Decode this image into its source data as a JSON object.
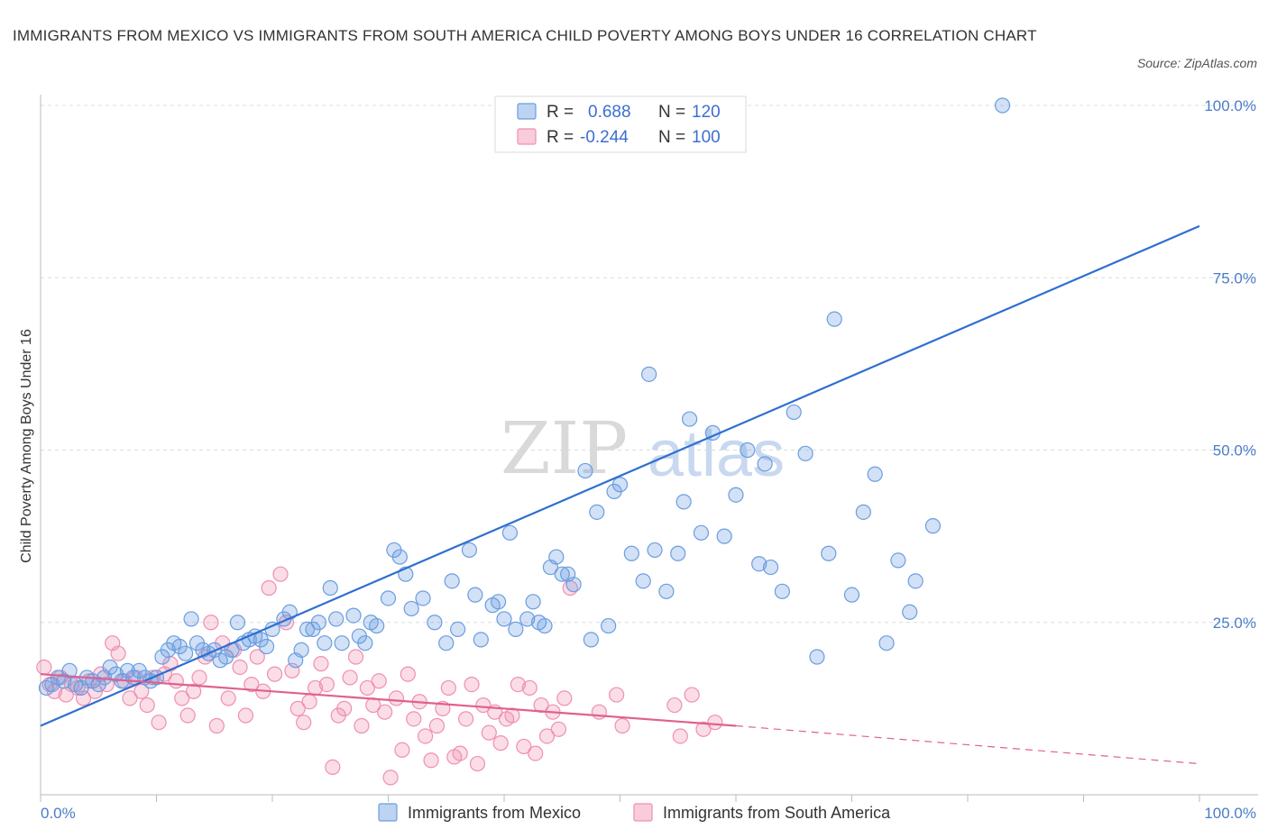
{
  "title": "IMMIGRANTS FROM MEXICO VS IMMIGRANTS FROM SOUTH AMERICA CHILD POVERTY AMONG BOYS UNDER 16 CORRELATION CHART",
  "source": "Source: ZipAtlas.com",
  "watermark": {
    "part1": "ZIP",
    "part2": "atlas"
  },
  "colors": {
    "mexico": "#6a9de0",
    "south_america": "#f08fb0",
    "mexico_line": "#2e6fd0",
    "sa_line": "#e0608f"
  },
  "legend": {
    "mexico": {
      "r_label": "R =",
      "r_value": "0.688",
      "n_label": "N =",
      "n_value": "120"
    },
    "south_america": {
      "r_label": "R =",
      "r_value": "-0.244",
      "n_label": "N =",
      "n_value": "100"
    }
  },
  "chart_data": {
    "type": "scatter",
    "title": "IMMIGRANTS FROM MEXICO VS IMMIGRANTS FROM SOUTH AMERICA CHILD POVERTY AMONG BOYS UNDER 16 CORRELATION CHART",
    "xlabel": "",
    "ylabel": "Child Poverty Among Boys Under 16",
    "xlim": [
      0,
      100
    ],
    "ylim": [
      0,
      100
    ],
    "x_tick_labels": [
      "0.0%",
      "100.0%"
    ],
    "y_ticks": [
      25,
      50,
      75,
      100
    ],
    "y_tick_labels": [
      "25.0%",
      "50.0%",
      "75.0%",
      "100.0%"
    ],
    "grid": true,
    "legend_position": "top-center",
    "series": [
      {
        "name": "Immigrants from Mexico",
        "trend": {
          "x": [
            0,
            100
          ],
          "y": [
            10,
            82.5
          ]
        },
        "points": [
          [
            0.5,
            15.5
          ],
          [
            1,
            16
          ],
          [
            1.5,
            17
          ],
          [
            2,
            16.5
          ],
          [
            2.5,
            18
          ],
          [
            3,
            16
          ],
          [
            3.5,
            15.5
          ],
          [
            4,
            17
          ],
          [
            4.5,
            16.5
          ],
          [
            5,
            16
          ],
          [
            5.5,
            17
          ],
          [
            6,
            18.5
          ],
          [
            6.5,
            17.5
          ],
          [
            7,
            16.5
          ],
          [
            7.5,
            18
          ],
          [
            8,
            17
          ],
          [
            8.5,
            18
          ],
          [
            9,
            17
          ],
          [
            9.5,
            16.5
          ],
          [
            10,
            17
          ],
          [
            10.5,
            20
          ],
          [
            11,
            21
          ],
          [
            11.5,
            22
          ],
          [
            12,
            21.5
          ],
          [
            12.5,
            20.5
          ],
          [
            13,
            25.5
          ],
          [
            13.5,
            22
          ],
          [
            14,
            21
          ],
          [
            14.5,
            20.5
          ],
          [
            15,
            21
          ],
          [
            15.5,
            19.5
          ],
          [
            16,
            20
          ],
          [
            16.5,
            21
          ],
          [
            17,
            25
          ],
          [
            17.5,
            22
          ],
          [
            18,
            22.5
          ],
          [
            18.5,
            23
          ],
          [
            19,
            22.5
          ],
          [
            19.5,
            21.5
          ],
          [
            20,
            24
          ],
          [
            21,
            25.5
          ],
          [
            21.5,
            26.5
          ],
          [
            22,
            19.5
          ],
          [
            22.5,
            21
          ],
          [
            23,
            24
          ],
          [
            23.5,
            24
          ],
          [
            24,
            25
          ],
          [
            24.5,
            22
          ],
          [
            25,
            30
          ],
          [
            25.5,
            25.5
          ],
          [
            26,
            22
          ],
          [
            27,
            26
          ],
          [
            27.5,
            23
          ],
          [
            28,
            22
          ],
          [
            28.5,
            25
          ],
          [
            29,
            24.5
          ],
          [
            30,
            28.5
          ],
          [
            30.5,
            35.5
          ],
          [
            31,
            34.5
          ],
          [
            31.5,
            32
          ],
          [
            32,
            27
          ],
          [
            33,
            28.5
          ],
          [
            34,
            25
          ],
          [
            35,
            22
          ],
          [
            35.5,
            31
          ],
          [
            36,
            24
          ],
          [
            37,
            35.5
          ],
          [
            37.5,
            29
          ],
          [
            38,
            22.5
          ],
          [
            39,
            27.5
          ],
          [
            39.5,
            28
          ],
          [
            40,
            25.5
          ],
          [
            40.5,
            38
          ],
          [
            41,
            24
          ],
          [
            42,
            25.5
          ],
          [
            42.5,
            28
          ],
          [
            43,
            25
          ],
          [
            43.5,
            24.5
          ],
          [
            44,
            33
          ],
          [
            44.5,
            34.5
          ],
          [
            45,
            32
          ],
          [
            45.5,
            32
          ],
          [
            46,
            30.5
          ],
          [
            47,
            47
          ],
          [
            47.5,
            22.5
          ],
          [
            48,
            41
          ],
          [
            49,
            24.5
          ],
          [
            49.5,
            44
          ],
          [
            50,
            45
          ],
          [
            51,
            35
          ],
          [
            52,
            31
          ],
          [
            52.5,
            61
          ],
          [
            53,
            35.5
          ],
          [
            54,
            29.5
          ],
          [
            55,
            35
          ],
          [
            55.5,
            42.5
          ],
          [
            56,
            54.5
          ],
          [
            57,
            38
          ],
          [
            58,
            52.5
          ],
          [
            59,
            37.5
          ],
          [
            60,
            43.5
          ],
          [
            61,
            50
          ],
          [
            62,
            33.5
          ],
          [
            62.5,
            48
          ],
          [
            63,
            33
          ],
          [
            64,
            29.5
          ],
          [
            65,
            55.5
          ],
          [
            66,
            49.5
          ],
          [
            67,
            20
          ],
          [
            68,
            35
          ],
          [
            68.5,
            69
          ],
          [
            70,
            29
          ],
          [
            71,
            41
          ],
          [
            72,
            46.5
          ],
          [
            73,
            22
          ],
          [
            74,
            34
          ],
          [
            75,
            26.5
          ],
          [
            75.5,
            31
          ],
          [
            77,
            39
          ],
          [
            83,
            100
          ]
        ]
      },
      {
        "name": "Immigrants from South America",
        "trend": {
          "x": [
            0,
            60
          ],
          "y": [
            17.5,
            10
          ]
        },
        "trend_dashed": {
          "x": [
            60,
            100
          ],
          "y": [
            10,
            4.5
          ]
        },
        "points": [
          [
            0.3,
            18.5
          ],
          [
            0.8,
            16
          ],
          [
            1.2,
            15
          ],
          [
            1.7,
            17
          ],
          [
            2.2,
            14.5
          ],
          [
            2.7,
            16
          ],
          [
            3.2,
            15.5
          ],
          [
            3.7,
            14
          ],
          [
            4.2,
            16.5
          ],
          [
            4.7,
            15
          ],
          [
            5.2,
            17.5
          ],
          [
            5.7,
            16
          ],
          [
            6.2,
            22
          ],
          [
            6.7,
            20.5
          ],
          [
            7.2,
            16.5
          ],
          [
            7.7,
            14
          ],
          [
            8.2,
            17
          ],
          [
            8.7,
            15
          ],
          [
            9.2,
            13
          ],
          [
            9.7,
            17
          ],
          [
            10.2,
            10.5
          ],
          [
            10.7,
            17.5
          ],
          [
            11.2,
            19
          ],
          [
            11.7,
            16.5
          ],
          [
            12.2,
            14
          ],
          [
            12.7,
            11.5
          ],
          [
            13.2,
            15
          ],
          [
            13.7,
            17
          ],
          [
            14.2,
            20
          ],
          [
            14.7,
            25
          ],
          [
            15.2,
            10
          ],
          [
            15.7,
            22
          ],
          [
            16.2,
            14
          ],
          [
            16.7,
            21
          ],
          [
            17.2,
            18.5
          ],
          [
            17.7,
            11.5
          ],
          [
            18.2,
            16
          ],
          [
            18.7,
            20
          ],
          [
            19.2,
            15
          ],
          [
            19.7,
            30
          ],
          [
            20.2,
            17.5
          ],
          [
            20.7,
            32
          ],
          [
            21.2,
            25
          ],
          [
            21.7,
            18
          ],
          [
            22.2,
            12.5
          ],
          [
            22.7,
            10.5
          ],
          [
            23.2,
            13.5
          ],
          [
            23.7,
            15.5
          ],
          [
            24.2,
            19
          ],
          [
            24.7,
            16
          ],
          [
            25.2,
            4
          ],
          [
            25.7,
            11.5
          ],
          [
            26.2,
            12.5
          ],
          [
            26.7,
            17
          ],
          [
            27.2,
            20
          ],
          [
            27.7,
            10
          ],
          [
            28.2,
            15.5
          ],
          [
            28.7,
            13
          ],
          [
            29.2,
            16.5
          ],
          [
            29.7,
            12
          ],
          [
            30.2,
            2.5
          ],
          [
            30.7,
            14
          ],
          [
            31.2,
            6.5
          ],
          [
            31.7,
            17.5
          ],
          [
            32.2,
            11
          ],
          [
            32.7,
            13.5
          ],
          [
            33.2,
            8.5
          ],
          [
            33.7,
            5
          ],
          [
            34.2,
            10
          ],
          [
            34.7,
            12.5
          ],
          [
            35.2,
            15.5
          ],
          [
            35.7,
            5.5
          ],
          [
            36.2,
            6
          ],
          [
            36.7,
            11
          ],
          [
            37.2,
            16
          ],
          [
            37.7,
            4.5
          ],
          [
            38.2,
            13
          ],
          [
            38.7,
            9
          ],
          [
            39.2,
            12
          ],
          [
            39.7,
            7.5
          ],
          [
            40.2,
            11
          ],
          [
            40.7,
            11.5
          ],
          [
            41.2,
            16
          ],
          [
            41.7,
            7
          ],
          [
            42.2,
            15.5
          ],
          [
            42.7,
            6
          ],
          [
            43.2,
            13
          ],
          [
            43.7,
            8.5
          ],
          [
            44.2,
            12
          ],
          [
            44.7,
            9.5
          ],
          [
            45.2,
            14
          ],
          [
            45.7,
            30
          ],
          [
            48.2,
            12
          ],
          [
            49.7,
            14.5
          ],
          [
            50.2,
            10
          ],
          [
            54.7,
            13
          ],
          [
            55.2,
            8.5
          ],
          [
            56.2,
            14.5
          ],
          [
            57.2,
            9.5
          ],
          [
            58.2,
            10.5
          ]
        ]
      }
    ]
  },
  "bottom_legend": {
    "mexico": "Immigrants from Mexico",
    "south_america": "Immigrants from South America"
  }
}
